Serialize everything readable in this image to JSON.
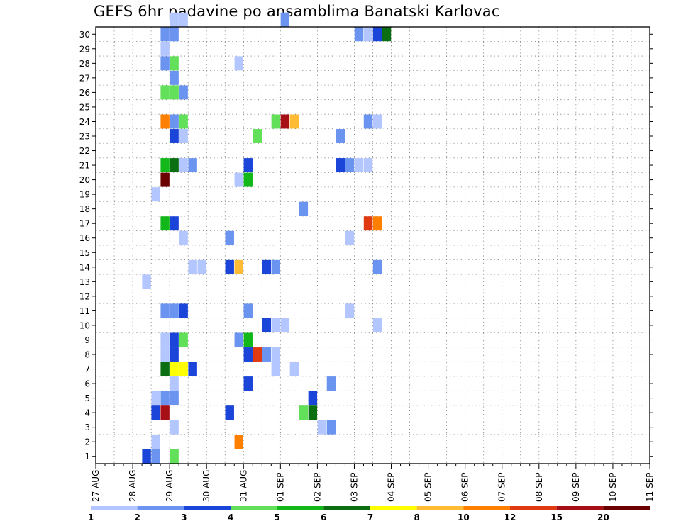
{
  "title": "GEFS 6hr padavine po ansamblima Banatski Karlovac",
  "colorbar": {
    "levels": [
      "1",
      "2",
      "3",
      "4",
      "5",
      "6",
      "7",
      "8",
      "10",
      "12",
      "15",
      "20"
    ],
    "colors": [
      "#b3c6ff",
      "#6b93f0",
      "#1b45d9",
      "#63e05a",
      "#12b81a",
      "#0c6e12",
      "#ffff00",
      "#ffbb33",
      "#ff7f00",
      "#e03a12",
      "#a50f15",
      "#6b0000"
    ]
  },
  "chart_data": {
    "type": "heatmap",
    "title": "GEFS 6hr padavine po ansamblima Banatski Karlovac",
    "xlabel": "",
    "ylabel": "",
    "x_tick_labels": [
      "27 AUG",
      "28 AUG",
      "29 AUG",
      "30 AUG",
      "31 AUG",
      "01 SEP",
      "02 SEP",
      "03 SEP",
      "04 SEP",
      "05 SEP",
      "06 SEP",
      "07 SEP",
      "08 SEP",
      "09 SEP",
      "10 SEP",
      "11 SEP"
    ],
    "x_range_steps": [
      0,
      60
    ],
    "y_tick_labels": [
      "1",
      "2",
      "3",
      "4",
      "5",
      "6",
      "7",
      "8",
      "9",
      "10",
      "11",
      "12",
      "13",
      "14",
      "15",
      "16",
      "17",
      "18",
      "19",
      "20",
      "21",
      "22",
      "23",
      "24",
      "25",
      "26",
      "27",
      "28",
      "29",
      "30"
    ],
    "y_range": [
      0,
      30
    ],
    "grid": true,
    "cell_value_units": "colour class index (0 = 1-2, 1 = 2-3, 2 = 3-4, 3 = 4-5, 4 = 5-6, 5 = 6-7, 6 = 7-8, 7 = 8-10, 8 = 10-12, 9 = 12-15, 10 = 15-20, 11 = >20)",
    "cells": [
      [
        8,
        30,
        0
      ],
      [
        9,
        30,
        0
      ],
      [
        20,
        30,
        1
      ],
      [
        7,
        29,
        1
      ],
      [
        8,
        29,
        1
      ],
      [
        28,
        29,
        1
      ],
      [
        29,
        29,
        0
      ],
      [
        30,
        29,
        2
      ],
      [
        31,
        29,
        5
      ],
      [
        7,
        28,
        0
      ],
      [
        7,
        27,
        1
      ],
      [
        8,
        27,
        3
      ],
      [
        15,
        27,
        0
      ],
      [
        8,
        26,
        1
      ],
      [
        7,
        25,
        3
      ],
      [
        8,
        25,
        3
      ],
      [
        9,
        25,
        1
      ],
      [
        7,
        23,
        8
      ],
      [
        8,
        23,
        1
      ],
      [
        9,
        23,
        3
      ],
      [
        19,
        23,
        3
      ],
      [
        20,
        23,
        10
      ],
      [
        21,
        23,
        7
      ],
      [
        29,
        23,
        1
      ],
      [
        30,
        23,
        0
      ],
      [
        8,
        22,
        2
      ],
      [
        9,
        22,
        0
      ],
      [
        17,
        22,
        3
      ],
      [
        26,
        22,
        1
      ],
      [
        7,
        20,
        4
      ],
      [
        8,
        20,
        5
      ],
      [
        9,
        20,
        0
      ],
      [
        10,
        20,
        1
      ],
      [
        16,
        20,
        2
      ],
      [
        26,
        20,
        1
      ],
      [
        26,
        20,
        2
      ],
      [
        27,
        20,
        1
      ],
      [
        28,
        20,
        0
      ],
      [
        29,
        20,
        0
      ],
      [
        7,
        19,
        11
      ],
      [
        15,
        19,
        0
      ],
      [
        16,
        19,
        4
      ],
      [
        6,
        18,
        0
      ],
      [
        22,
        17,
        1
      ],
      [
        7,
        16,
        4
      ],
      [
        8,
        16,
        2
      ],
      [
        29,
        16,
        9
      ],
      [
        30,
        16,
        8
      ],
      [
        9,
        15,
        0
      ],
      [
        14,
        15,
        1
      ],
      [
        27,
        15,
        0
      ],
      [
        10,
        13,
        0
      ],
      [
        11,
        13,
        0
      ],
      [
        14,
        13,
        2
      ],
      [
        15,
        13,
        7
      ],
      [
        18,
        13,
        2
      ],
      [
        19,
        13,
        1
      ],
      [
        30,
        13,
        1
      ],
      [
        5,
        12,
        0
      ],
      [
        7,
        10,
        1
      ],
      [
        8,
        10,
        1
      ],
      [
        9,
        10,
        2
      ],
      [
        16,
        10,
        1
      ],
      [
        27,
        10,
        0
      ],
      [
        18,
        9,
        2
      ],
      [
        19,
        9,
        0
      ],
      [
        20,
        9,
        0
      ],
      [
        30,
        9,
        0
      ],
      [
        7,
        8,
        0
      ],
      [
        8,
        8,
        2
      ],
      [
        9,
        8,
        3
      ],
      [
        15,
        8,
        1
      ],
      [
        16,
        8,
        4
      ],
      [
        7,
        7,
        0
      ],
      [
        8,
        7,
        2
      ],
      [
        16,
        7,
        2
      ],
      [
        17,
        7,
        9
      ],
      [
        18,
        7,
        1
      ],
      [
        19,
        7,
        0
      ],
      [
        7,
        6,
        5
      ],
      [
        8,
        6,
        6
      ],
      [
        9,
        6,
        6
      ],
      [
        10,
        6,
        2
      ],
      [
        19,
        6,
        0
      ],
      [
        21,
        6,
        0
      ],
      [
        8,
        5,
        0
      ],
      [
        16,
        5,
        2
      ],
      [
        25,
        5,
        1
      ],
      [
        6,
        4,
        0
      ],
      [
        7,
        4,
        1
      ],
      [
        8,
        4,
        1
      ],
      [
        23,
        4,
        2
      ],
      [
        6,
        3,
        2
      ],
      [
        7,
        3,
        10
      ],
      [
        14,
        3,
        2
      ],
      [
        22,
        3,
        3
      ],
      [
        23,
        3,
        5
      ],
      [
        8,
        2,
        0
      ],
      [
        24,
        2,
        0
      ],
      [
        25,
        2,
        1
      ],
      [
        6,
        1,
        0
      ],
      [
        15,
        1,
        8
      ],
      [
        5,
        0,
        2
      ],
      [
        6,
        0,
        1
      ],
      [
        8,
        0,
        3
      ]
    ]
  }
}
